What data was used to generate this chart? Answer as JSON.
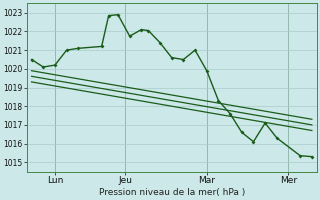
{
  "background_color": "#cce8e8",
  "grid_color": "#aacccc",
  "line_color": "#1a5c1a",
  "title": "Pression niveau de la mer( hPa )",
  "ylim": [
    1014.5,
    1023.5
  ],
  "xlim": [
    -0.2,
    12.2
  ],
  "day_positions": [
    1.0,
    4.0,
    7.5,
    11.0
  ],
  "day_labels": [
    "Lun",
    "Jeu",
    "Mar",
    "Mer"
  ],
  "main_x": [
    0.0,
    0.5,
    1.0,
    1.5,
    2.0,
    3.0,
    3.3,
    3.7,
    4.2,
    4.7,
    5.0,
    5.5,
    6.0,
    6.5,
    7.0,
    7.5,
    8.0,
    8.5,
    9.0,
    9.5,
    10.0,
    10.5,
    11.5,
    12.0
  ],
  "main_y": [
    1020.5,
    1020.1,
    1020.2,
    1021.0,
    1021.1,
    1021.2,
    1022.85,
    1022.9,
    1021.75,
    1022.1,
    1022.05,
    1021.4,
    1020.6,
    1020.5,
    1021.0,
    1019.9,
    1018.3,
    1017.6,
    1016.6,
    1016.1,
    1017.1,
    1016.3,
    1015.35,
    1015.3
  ],
  "line1_x": [
    0.0,
    12.0
  ],
  "line1_y": [
    1019.9,
    1017.3
  ],
  "line2_x": [
    0.0,
    12.0
  ],
  "line2_y": [
    1019.6,
    1017.0
  ],
  "line3_x": [
    0.0,
    12.0
  ],
  "line3_y": [
    1019.3,
    1016.7
  ],
  "vline_positions": [
    1.0,
    4.0,
    7.5,
    11.0
  ]
}
